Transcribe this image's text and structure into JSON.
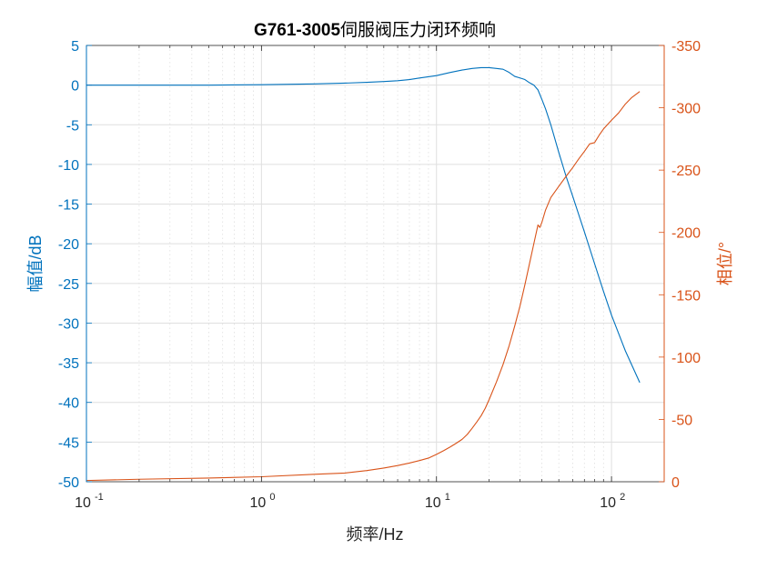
{
  "chart_data": {
    "type": "line",
    "title": "G761-3005伺服阀压力闭环频响",
    "title_bold_part": "G761-3005",
    "title_rest_part": "伺服阀压力闭环频响",
    "xlabel": "频率/Hz",
    "ylabel_left": "幅值/dB",
    "ylabel_right": "相位/°",
    "x_scale": "log",
    "xlim": [
      0.1,
      200
    ],
    "ylim_left": [
      -50,
      5
    ],
    "ylim_right": [
      0,
      -350
    ],
    "x_ticks": [
      {
        "base": "10",
        "exp": "-1",
        "value": 0.1
      },
      {
        "base": "10",
        "exp": "0",
        "value": 1
      },
      {
        "base": "10",
        "exp": "1",
        "value": 10
      },
      {
        "base": "10",
        "exp": "2",
        "value": 100
      }
    ],
    "y_ticks_left": [
      "5",
      "0",
      "-5",
      "-10",
      "-15",
      "-20",
      "-25",
      "-30",
      "-35",
      "-40",
      "-45",
      "-50"
    ],
    "y_ticks_right": [
      "-350",
      "-300",
      "-250",
      "-200",
      "-150",
      "-100",
      "-50",
      "0"
    ],
    "grid": true,
    "minor_grid_x": true,
    "colors": {
      "amplitude": "#0072BD",
      "phase": "#D95319",
      "axis": "#262626",
      "grid": "#DFDFDF"
    },
    "series": [
      {
        "axis": "left",
        "color": "#0072BD",
        "x": [
          0.1,
          0.2,
          0.5,
          1,
          2,
          3,
          4,
          5,
          6,
          7,
          8,
          10,
          12,
          14,
          16,
          18,
          20,
          22,
          24,
          26,
          28,
          30,
          32,
          34,
          36,
          38,
          40,
          42,
          45,
          50,
          55,
          60,
          70,
          80,
          90,
          100,
          120,
          145
        ],
        "y": [
          0,
          0,
          0,
          0.05,
          0.15,
          0.25,
          0.35,
          0.45,
          0.55,
          0.7,
          0.9,
          1.2,
          1.6,
          1.9,
          2.1,
          2.2,
          2.2,
          2.1,
          2.0,
          1.6,
          1.1,
          0.9,
          0.7,
          0.3,
          0,
          -0.6,
          -1.8,
          -3.0,
          -5.0,
          -8.5,
          -11.5,
          -14.0,
          -18.5,
          -22.5,
          -26.0,
          -29.0,
          -33.5,
          -37.5
        ]
      },
      {
        "axis": "right",
        "color": "#D95319",
        "x": [
          0.1,
          0.2,
          0.5,
          1,
          2,
          3,
          4,
          5,
          6,
          7,
          8,
          9,
          10,
          11,
          12,
          13,
          14,
          15,
          16,
          17,
          18,
          19,
          20,
          22,
          24,
          26,
          28,
          30,
          32,
          34,
          36,
          38,
          39,
          40,
          42,
          45,
          50,
          55,
          60,
          65,
          70,
          75,
          80,
          85,
          90,
          100,
          110,
          120,
          130,
          145
        ],
        "y": [
          -1,
          -2,
          -3,
          -4,
          -6,
          -7,
          -9,
          -11,
          -13,
          -15,
          -17,
          -19,
          -22,
          -25,
          -28,
          -31,
          -34,
          -38,
          -43,
          -48,
          -53,
          -59,
          -66,
          -80,
          -94,
          -109,
          -125,
          -141,
          -158,
          -175,
          -191,
          -206,
          -204,
          -208,
          -218,
          -228,
          -237,
          -245,
          -252,
          -259,
          -265,
          -271,
          -272,
          -278,
          -283,
          -290,
          -296,
          -303,
          -308,
          -313
        ]
      }
    ]
  }
}
